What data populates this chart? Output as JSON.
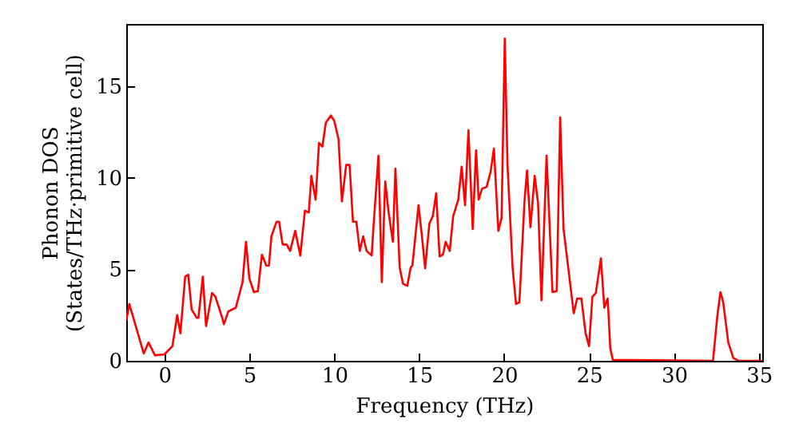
{
  "chart_data": {
    "type": "line",
    "xlabel": "Frequency (THz)",
    "ylabel": "Phonon DOS\n(States/THz·primitive cell)",
    "xlim": [
      -2.25,
      35.2
    ],
    "ylim": [
      0,
      18.4
    ],
    "xticks": [
      0,
      5,
      10,
      15,
      20,
      25,
      30,
      35
    ],
    "yticks": [
      0,
      5,
      10,
      15
    ],
    "grid": false,
    "marker": "none",
    "line_style": "solid",
    "series": [
      {
        "color": "#ff0000",
        "x": [
          -2.25,
          -2.07,
          -1.22,
          -0.94,
          -0.56,
          0,
          0.47,
          0.75,
          0.94,
          1.22,
          1.4,
          1.6,
          1.9,
          2.0,
          2.26,
          2.45,
          2.8,
          3.0,
          3.4,
          3.5,
          3.76,
          4.2,
          4.6,
          4.8,
          5.0,
          5.27,
          5.5,
          5.74,
          6.0,
          6.15,
          6.3,
          6.6,
          6.75,
          6.96,
          7.2,
          7.4,
          7.7,
          8.0,
          8.27,
          8.5,
          8.65,
          8.9,
          9.1,
          9.3,
          9.5,
          9.8,
          10.0,
          10.25,
          10.45,
          10.7,
          10.9,
          11.1,
          11.3,
          11.5,
          11.7,
          11.9,
          12.2,
          12.3,
          12.6,
          12.8,
          13.0,
          13.2,
          13.45,
          13.6,
          13.85,
          14.05,
          14.3,
          14.5,
          14.6,
          14.96,
          15.15,
          15.35,
          15.6,
          15.8,
          16.0,
          16.2,
          16.4,
          16.56,
          16.8,
          17.0,
          17.3,
          17.5,
          17.7,
          17.9,
          18.15,
          18.35,
          18.5,
          18.7,
          18.97,
          19.2,
          19.4,
          19.66,
          19.85,
          20.04,
          20.2,
          20.5,
          20.7,
          20.9,
          21.2,
          21.35,
          21.55,
          21.8,
          22.0,
          22.2,
          22.5,
          22.85,
          23.1,
          23.3,
          23.5,
          23.8,
          24.1,
          24.3,
          24.55,
          24.8,
          25.0,
          25.2,
          25.4,
          25.7,
          25.9,
          26.1,
          26.25,
          26.4,
          32.3,
          32.55,
          32.74,
          32.9,
          33.2,
          33.5,
          33.8,
          35.2
        ],
        "values": [
          2.2,
          3.1,
          0.4,
          1.0,
          0.3,
          0.35,
          0.8,
          2.5,
          1.5,
          4.6,
          4.7,
          2.8,
          2.35,
          2.35,
          4.6,
          1.9,
          3.7,
          3.5,
          2.35,
          2.0,
          2.7,
          2.9,
          4.3,
          6.5,
          4.5,
          3.75,
          3.8,
          5.8,
          5.2,
          5.2,
          6.8,
          7.6,
          7.6,
          6.35,
          6.35,
          6.0,
          7.1,
          5.75,
          8.2,
          8.1,
          10.1,
          8.8,
          11.9,
          11.7,
          13.0,
          13.4,
          13.1,
          12.1,
          8.7,
          10.7,
          10.7,
          7.6,
          7.6,
          6.0,
          6.8,
          6.0,
          5.75,
          7.2,
          11.2,
          4.3,
          9.8,
          8.1,
          6.5,
          10.5,
          5.1,
          4.2,
          4.1,
          5.1,
          5.2,
          8.5,
          6.9,
          5.05,
          7.5,
          7.9,
          9.15,
          5.7,
          5.8,
          6.5,
          6.0,
          7.9,
          8.8,
          10.6,
          8.5,
          12.6,
          7.2,
          11.5,
          8.8,
          9.4,
          9.5,
          10.3,
          11.6,
          7.1,
          7.8,
          17.6,
          10.7,
          5.1,
          3.1,
          3.2,
          8.7,
          10.4,
          7.3,
          10.1,
          8.6,
          3.3,
          11.2,
          3.75,
          3.8,
          13.3,
          7.2,
          4.9,
          2.6,
          3.4,
          3.4,
          1.5,
          0.8,
          3.5,
          3.7,
          5.6,
          2.9,
          3.4,
          0.7,
          0.05,
          0,
          2.4,
          3.75,
          3.2,
          1.0,
          0.15,
          0,
          0
        ]
      }
    ]
  }
}
